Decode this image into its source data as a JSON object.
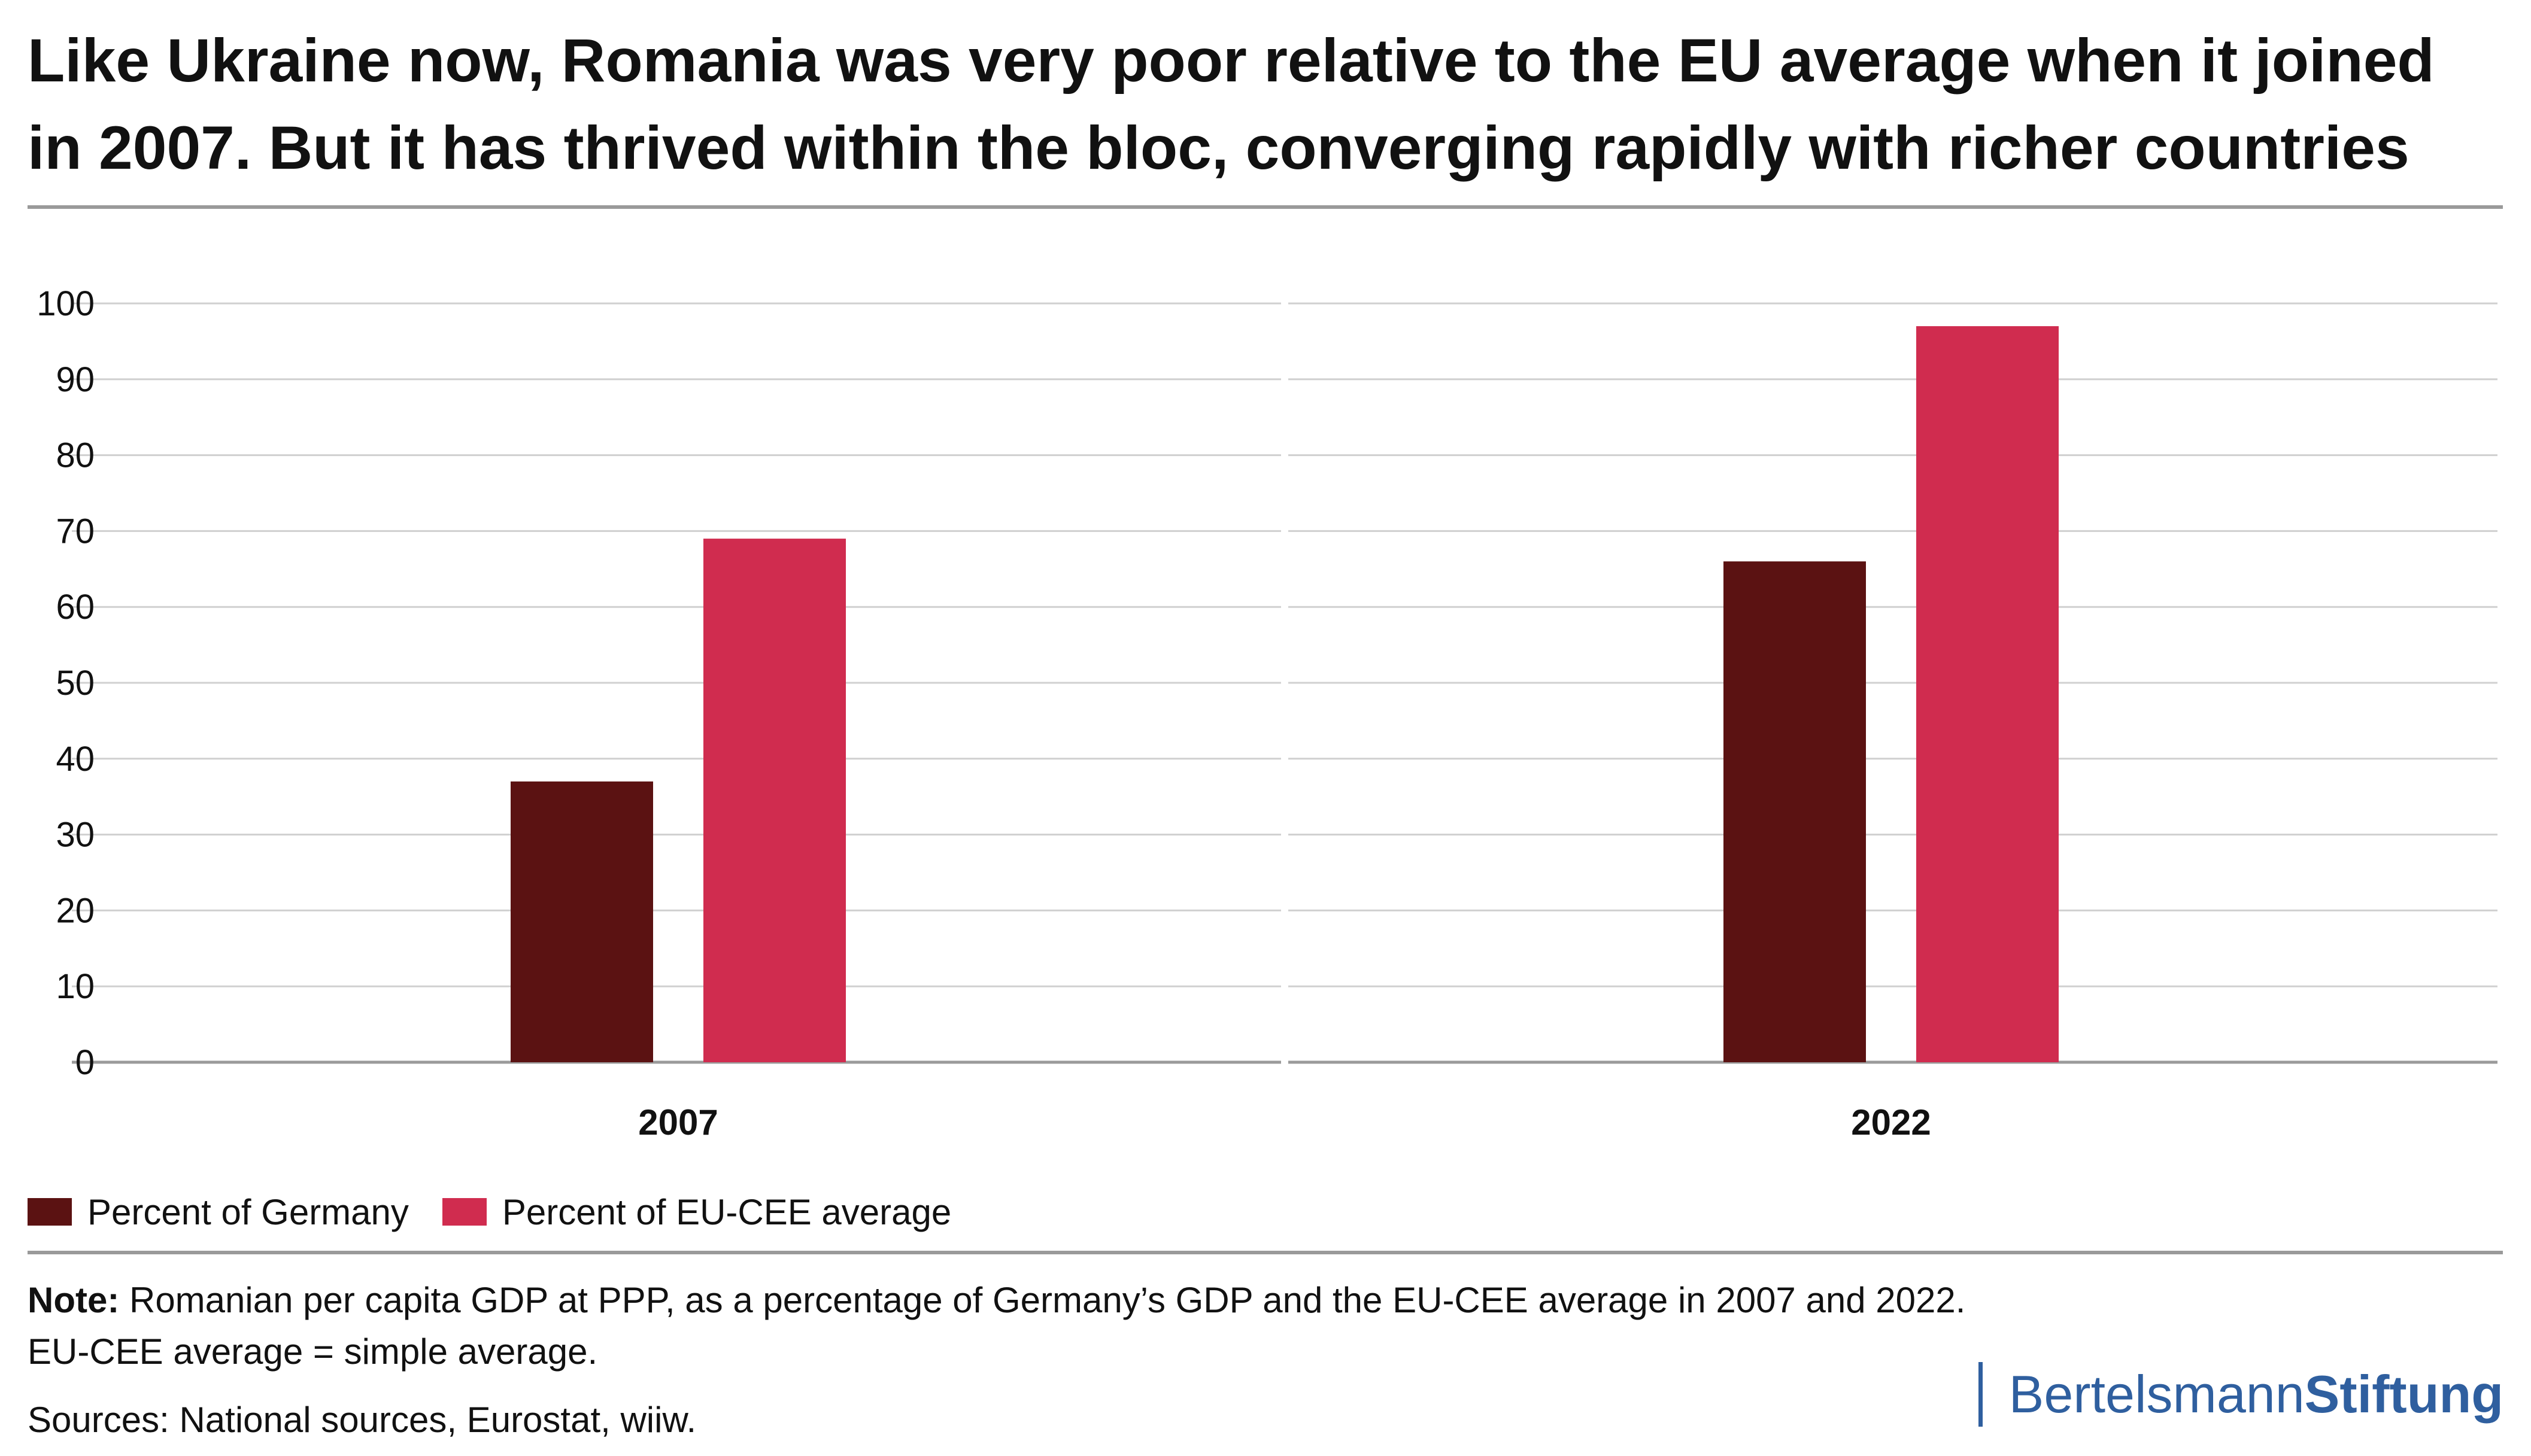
{
  "title": "Like Ukraine now, Romania was very poor relative to the EU average when it joined in 2007. But it has thrived within the bloc, converging rapidly with richer countries",
  "note_label": "Note:",
  "note_text": "Romanian per capita GDP at PPP, as a percentage of Germany’s GDP and the EU-CEE average in 2007 and 2022.",
  "note_text_2": "EU-CEE average = simple average.",
  "sources": "Sources: National sources, Eurostat, wiiw.",
  "logo": {
    "regular": "Bertelsmann",
    "bold": "Stiftung"
  },
  "colors": {
    "germany": "#5b1212",
    "eu_cee": "#d02c4f",
    "grid": "#d0d0d0",
    "axis": "#9a9a9a",
    "text": "#111111",
    "brand": "#2f5f9f"
  },
  "chart_data": {
    "type": "bar",
    "categories": [
      "2007",
      "2022"
    ],
    "series": [
      {
        "name": "Percent of Germany",
        "values": [
          37,
          66
        ]
      },
      {
        "name": "Percent of EU-CEE average",
        "values": [
          69,
          97
        ]
      }
    ],
    "title": "",
    "xlabel": "",
    "ylabel": "",
    "ylim": [
      0,
      100
    ],
    "yticks": [
      "0",
      "10",
      "20",
      "30",
      "40",
      "50",
      "60",
      "70",
      "80",
      "90",
      "100"
    ],
    "grid": true,
    "legend": "bottom-left"
  }
}
